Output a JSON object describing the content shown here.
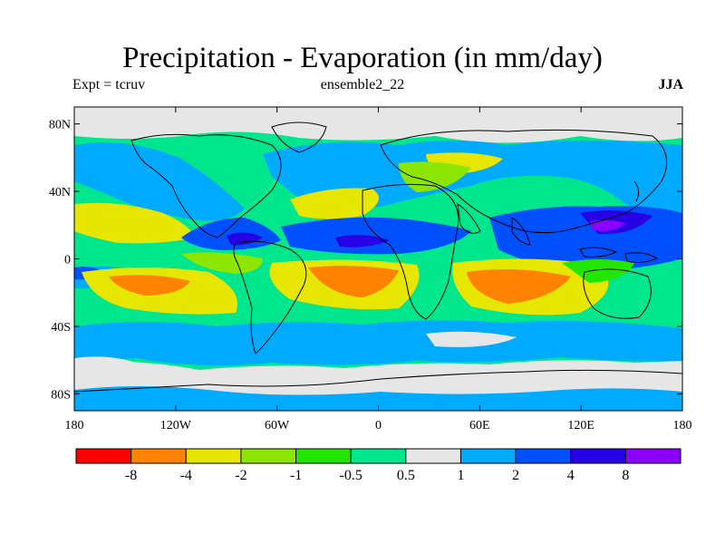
{
  "title": "Precipitation - Evaporation (in mm/day)",
  "left_label": "Expt = tcruv",
  "center_label": "ensemble2_22",
  "right_label": "JJA",
  "axes": {
    "lat_ticks": [
      "80N",
      "40N",
      "0",
      "40S",
      "80S"
    ],
    "lon_ticks": [
      "180",
      "120W",
      "60W",
      "0",
      "60E",
      "120E",
      "180"
    ]
  },
  "colorbar": {
    "colors": [
      "#ff0000",
      "#ff8200",
      "#e6e600",
      "#8ce600",
      "#23e600",
      "#00e68c",
      "#e6e6e6",
      "#00aaff",
      "#0050ff",
      "#2800e6",
      "#8c00ff"
    ],
    "labels": [
      "-8",
      "-4",
      "-2",
      "-1",
      "-0.5",
      "0.5",
      "1",
      "2",
      "4",
      "8"
    ]
  }
}
